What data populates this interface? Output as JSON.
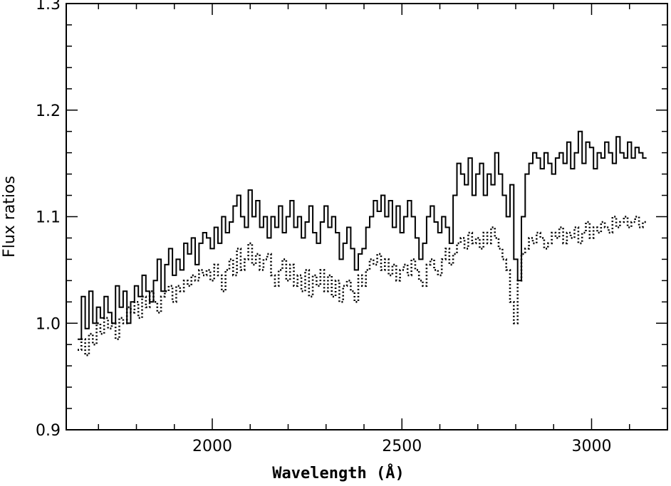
{
  "chart_data": {
    "type": "line",
    "title": "",
    "xlabel": "Wavelength (Å)",
    "ylabel": "Flux ratios",
    "xlim": [
      1615,
      3200
    ],
    "ylim": [
      0.9,
      1.3
    ],
    "xticks": [
      {
        "value": 2000,
        "label": "2000"
      },
      {
        "value": 2500,
        "label": "2500"
      },
      {
        "value": 3000,
        "label": "3000"
      }
    ],
    "yticks": [
      {
        "value": 0.9,
        "label": "0.9"
      },
      {
        "value": 1.0,
        "label": "1.0"
      },
      {
        "value": 1.1,
        "label": "1.1"
      },
      {
        "value": 1.2,
        "label": "1.2"
      },
      {
        "value": 1.3,
        "label": "1.3"
      }
    ],
    "grid": false,
    "legend": "none",
    "series": [
      {
        "style": "solid-step",
        "x": [
          1650,
          1660,
          1670,
          1680,
          1690,
          1700,
          1710,
          1720,
          1730,
          1740,
          1750,
          1760,
          1770,
          1780,
          1790,
          1800,
          1810,
          1820,
          1830,
          1840,
          1850,
          1860,
          1870,
          1880,
          1890,
          1900,
          1910,
          1920,
          1930,
          1940,
          1950,
          1960,
          1970,
          1980,
          1990,
          2000,
          2010,
          2020,
          2030,
          2040,
          2050,
          2060,
          2070,
          2080,
          2090,
          2100,
          2110,
          2120,
          2130,
          2140,
          2150,
          2160,
          2170,
          2180,
          2190,
          2200,
          2210,
          2220,
          2230,
          2240,
          2250,
          2260,
          2270,
          2280,
          2290,
          2300,
          2310,
          2320,
          2330,
          2340,
          2350,
          2360,
          2370,
          2380,
          2390,
          2400,
          2410,
          2420,
          2430,
          2440,
          2450,
          2460,
          2470,
          2480,
          2490,
          2500,
          2510,
          2520,
          2530,
          2540,
          2550,
          2560,
          2570,
          2580,
          2590,
          2600,
          2610,
          2620,
          2630,
          2640,
          2650,
          2660,
          2670,
          2680,
          2690,
          2700,
          2710,
          2720,
          2730,
          2740,
          2750,
          2760,
          2770,
          2780,
          2790,
          2800,
          2810,
          2820,
          2830,
          2840,
          2850,
          2860,
          2870,
          2880,
          2890,
          2900,
          2910,
          2920,
          2930,
          2940,
          2950,
          2960,
          2970,
          2980,
          2990,
          3000,
          3010,
          3020,
          3030,
          3040,
          3050,
          3060,
          3070,
          3080,
          3090,
          3100,
          3110,
          3120,
          3130,
          3140
        ],
        "y": [
          0.985,
          1.025,
          0.995,
          1.03,
          1.0,
          1.015,
          1.005,
          1.025,
          1.01,
          1.0,
          1.035,
          1.015,
          1.03,
          1.0,
          1.02,
          1.035,
          1.025,
          1.045,
          1.03,
          1.02,
          1.04,
          1.06,
          1.03,
          1.055,
          1.07,
          1.045,
          1.06,
          1.05,
          1.075,
          1.065,
          1.08,
          1.055,
          1.075,
          1.085,
          1.08,
          1.07,
          1.09,
          1.075,
          1.1,
          1.085,
          1.095,
          1.11,
          1.12,
          1.1,
          1.09,
          1.125,
          1.1,
          1.115,
          1.09,
          1.1,
          1.08,
          1.1,
          1.09,
          1.11,
          1.085,
          1.1,
          1.115,
          1.09,
          1.1,
          1.08,
          1.095,
          1.11,
          1.085,
          1.075,
          1.095,
          1.11,
          1.09,
          1.1,
          1.085,
          1.06,
          1.075,
          1.09,
          1.07,
          1.05,
          1.065,
          1.07,
          1.09,
          1.1,
          1.115,
          1.105,
          1.12,
          1.1,
          1.115,
          1.09,
          1.11,
          1.085,
          1.1,
          1.115,
          1.1,
          1.08,
          1.06,
          1.075,
          1.1,
          1.11,
          1.095,
          1.085,
          1.1,
          1.09,
          1.075,
          1.12,
          1.15,
          1.14,
          1.13,
          1.155,
          1.12,
          1.14,
          1.15,
          1.12,
          1.14,
          1.13,
          1.16,
          1.14,
          1.12,
          1.1,
          1.13,
          1.06,
          1.04,
          1.1,
          1.14,
          1.15,
          1.16,
          1.155,
          1.145,
          1.16,
          1.15,
          1.14,
          1.155,
          1.16,
          1.15,
          1.17,
          1.145,
          1.16,
          1.18,
          1.15,
          1.17,
          1.165,
          1.145,
          1.16,
          1.155,
          1.17,
          1.16,
          1.15,
          1.175,
          1.16,
          1.155,
          1.17,
          1.155,
          1.165,
          1.16,
          1.155
        ]
      },
      {
        "style": "dotted-step",
        "x": [
          1650,
          1660,
          1670,
          1680,
          1690,
          1700,
          1710,
          1720,
          1730,
          1740,
          1750,
          1760,
          1770,
          1780,
          1790,
          1800,
          1810,
          1820,
          1830,
          1840,
          1850,
          1860,
          1870,
          1880,
          1890,
          1900,
          1910,
          1920,
          1930,
          1940,
          1950,
          1960,
          1970,
          1980,
          1990,
          2000,
          2010,
          2020,
          2030,
          2040,
          2050,
          2060,
          2070,
          2080,
          2090,
          2100,
          2110,
          2120,
          2130,
          2140,
          2150,
          2160,
          2170,
          2180,
          2190,
          2200,
          2210,
          2220,
          2230,
          2240,
          2250,
          2260,
          2270,
          2280,
          2290,
          2300,
          2310,
          2320,
          2330,
          2340,
          2350,
          2360,
          2370,
          2380,
          2390,
          2400,
          2410,
          2420,
          2430,
          2440,
          2450,
          2460,
          2470,
          2480,
          2490,
          2500,
          2510,
          2520,
          2530,
          2540,
          2550,
          2560,
          2570,
          2580,
          2590,
          2600,
          2610,
          2620,
          2630,
          2640,
          2650,
          2660,
          2670,
          2680,
          2690,
          2700,
          2710,
          2720,
          2730,
          2740,
          2750,
          2760,
          2770,
          2780,
          2790,
          2800,
          2810,
          2820,
          2830,
          2840,
          2850,
          2860,
          2870,
          2880,
          2890,
          2900,
          2910,
          2920,
          2930,
          2940,
          2950,
          2960,
          2970,
          2980,
          2990,
          3000,
          3010,
          3020,
          3030,
          3040,
          3050,
          3060,
          3070,
          3080,
          3090,
          3100,
          3110,
          3120,
          3130,
          3140
        ],
        "y": [
          0.975,
          0.985,
          0.97,
          0.99,
          0.98,
          1.0,
          0.99,
          1.005,
          0.995,
          1.0,
          0.985,
          1.005,
          1.0,
          1.015,
          1.01,
          1.02,
          1.005,
          1.025,
          1.015,
          1.03,
          1.02,
          1.01,
          1.025,
          1.03,
          1.035,
          1.02,
          1.035,
          1.03,
          1.04,
          1.035,
          1.045,
          1.04,
          1.05,
          1.045,
          1.05,
          1.04,
          1.055,
          1.045,
          1.03,
          1.05,
          1.06,
          1.045,
          1.07,
          1.05,
          1.06,
          1.075,
          1.055,
          1.065,
          1.05,
          1.06,
          1.065,
          1.045,
          1.035,
          1.05,
          1.06,
          1.04,
          1.055,
          1.035,
          1.045,
          1.03,
          1.05,
          1.025,
          1.045,
          1.035,
          1.05,
          1.03,
          1.045,
          1.025,
          1.04,
          1.02,
          1.035,
          1.04,
          1.03,
          1.02,
          1.045,
          1.035,
          1.05,
          1.06,
          1.055,
          1.065,
          1.05,
          1.06,
          1.045,
          1.055,
          1.04,
          1.05,
          1.055,
          1.045,
          1.06,
          1.05,
          1.04,
          1.035,
          1.055,
          1.06,
          1.05,
          1.045,
          1.06,
          1.07,
          1.055,
          1.065,
          1.075,
          1.08,
          1.07,
          1.085,
          1.075,
          1.08,
          1.07,
          1.085,
          1.075,
          1.09,
          1.08,
          1.07,
          1.06,
          1.05,
          1.02,
          1.0,
          1.04,
          1.065,
          1.07,
          1.08,
          1.075,
          1.085,
          1.08,
          1.07,
          1.075,
          1.085,
          1.08,
          1.09,
          1.075,
          1.085,
          1.08,
          1.09,
          1.075,
          1.085,
          1.095,
          1.08,
          1.09,
          1.085,
          1.095,
          1.09,
          1.085,
          1.1,
          1.09,
          1.095,
          1.1,
          1.09,
          1.095,
          1.1,
          1.09,
          1.095
        ]
      }
    ]
  }
}
